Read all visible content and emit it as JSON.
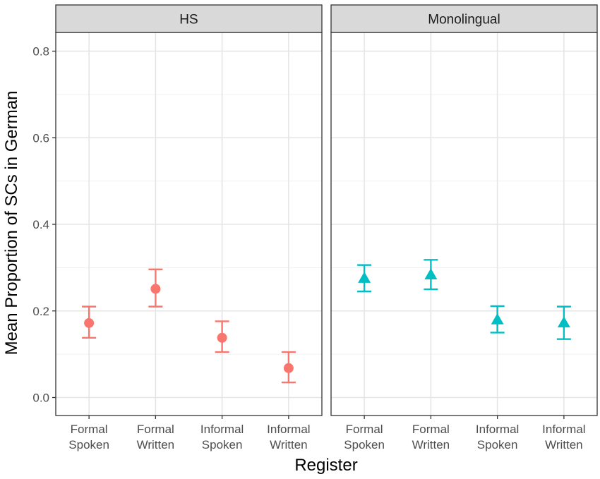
{
  "chart_data": {
    "type": "scatter",
    "subtype": "point-with-errorbars, faceted",
    "xlabel": "Register",
    "ylabel": "Mean Proportion of SCs in German",
    "ylim": [
      0,
      0.8
    ],
    "yticks": [
      "0.0",
      "0.2",
      "0.4",
      "0.6",
      "0.8"
    ],
    "categories": [
      [
        "Formal",
        "Spoken"
      ],
      [
        "Formal",
        "Written"
      ],
      [
        "Informal",
        "Spoken"
      ],
      [
        "Informal",
        "Written"
      ]
    ],
    "grid": true,
    "legend": "none",
    "facets": [
      {
        "label": "HS",
        "color": "#F8766D",
        "shape": "circle",
        "values": [
          0.172,
          0.251,
          0.138,
          0.068
        ],
        "lower": [
          0.138,
          0.21,
          0.105,
          0.035
        ],
        "upper": [
          0.21,
          0.296,
          0.176,
          0.105
        ]
      },
      {
        "label": "Monolingual",
        "color": "#00BFC4",
        "shape": "triangle",
        "values": [
          0.276,
          0.284,
          0.18,
          0.173
        ],
        "lower": [
          0.245,
          0.25,
          0.15,
          0.135
        ],
        "upper": [
          0.306,
          0.318,
          0.211,
          0.21
        ]
      }
    ]
  }
}
